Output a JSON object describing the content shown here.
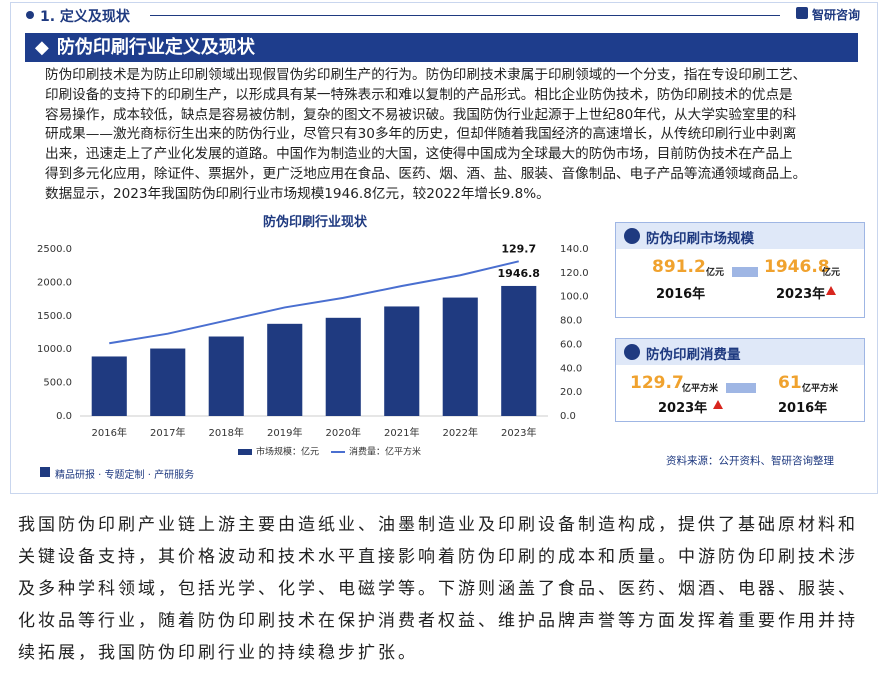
{
  "header": {
    "section": "1. 定义及现状",
    "logo": "智研咨询"
  },
  "banner": {
    "title": "防伪印刷行业定义及现状"
  },
  "intro": {
    "lines": [
      "防伪印刷技术是为防止印刷领域出现假冒伪劣印刷生产的行为。防伪印刷技术隶属于印刷领域的一个分支，指在专设印刷工艺、",
      "印刷设备的支持下的印刷生产，以形成具有某一特殊表示和难以复制的产品形式。相比企业防伪技术，防伪印刷技术的优点是",
      "容易操作，成本较低，缺点是容易被仿制，复杂的图文不易被识破。我国防伪行业起源于上世纪80年代，从大学实验室里的科",
      "研成果——激光商标衍生出来的防伪行业，尽管只有30多年的历史，但却伴随着我国经济的高速增长，从传统印刷行业中剥离",
      "出来，迅速走上了产业化发展的道路。中国作为制造业的大国，这使得中国成为全球最大的防伪市场，目前防伪技术在产品上",
      "得到多元化应用，除证件、票据外，更广泛地应用在食品、医药、烟、酒、盐、服装、音像制品、电子产品等流通领域商品上。",
      "数据显示，2023年我国防伪印刷行业市场规模1946.8亿元，较2022年增长9.8%。"
    ]
  },
  "chart_data": {
    "type": "bar_line",
    "title": "防伪印刷行业现状",
    "categories": [
      "2016年",
      "2017年",
      "2018年",
      "2019年",
      "2020年",
      "2021年",
      "2022年",
      "2023年"
    ],
    "series": [
      {
        "name": "市场规模：亿元",
        "type": "bar",
        "color": "#1f3a80",
        "values": [
          891.2,
          1010,
          1190,
          1380,
          1470,
          1640,
          1773,
          1946.8
        ]
      },
      {
        "name": "消费量：亿平方米",
        "type": "line",
        "axis": "y2",
        "color": "#4a6fd0",
        "values": [
          61,
          69,
          80,
          91,
          99,
          109,
          118,
          129.7
        ]
      }
    ],
    "data_labels": "last",
    "ylim": [
      0,
      2500
    ],
    "yticks": [
      {
        "value": 0,
        "label": "0.0"
      },
      {
        "value": 500,
        "label": "500.0"
      },
      {
        "value": 1000,
        "label": "1000.0"
      },
      {
        "value": 1500,
        "label": "1500.0"
      },
      {
        "value": 2000,
        "label": "2000.0"
      },
      {
        "value": 2500,
        "label": "2500.0"
      }
    ],
    "y2lim": [
      0,
      140
    ],
    "y2ticks": [
      {
        "value": 0,
        "label": "0.0"
      },
      {
        "value": 20,
        "label": "20.0"
      },
      {
        "value": 40,
        "label": "40.0"
      },
      {
        "value": 60,
        "label": "60.0"
      },
      {
        "value": 80,
        "label": "80.0"
      },
      {
        "value": 100,
        "label": "100.0"
      },
      {
        "value": 120,
        "label": "120.0"
      },
      {
        "value": 140,
        "label": "140.0"
      }
    ],
    "grid": false,
    "legend": "bottom"
  },
  "panels": [
    {
      "title": "防伪印刷市场规模",
      "left_value": "891.2",
      "left_unit": "亿元",
      "left_year": "2016年",
      "right_value": "1946.8",
      "right_unit": "亿元",
      "right_year": "2023年"
    },
    {
      "title": "防伪印刷消费量",
      "left_value": "129.7",
      "left_unit": "亿平方米",
      "left_year": "2023年",
      "right_value": "61",
      "right_unit": "亿平方米",
      "right_year": "2016年"
    }
  ],
  "footer": {
    "services": "精品研报 · 专题定制 · 产研服务",
    "source": "资料来源：公开资料、智研咨询整理"
  },
  "body": {
    "lines": [
      "我国防伪印刷产业链上游主要由造纸业、油墨制造业及印刷设备制造构成，提供了基础原材料和",
      "关键设备支持，其价格波动和技术水平直接影响着防伪印刷的成本和质量。中游防伪印刷技术涉",
      "及多种学科领域，包括光学、化学、电磁学等。下游则涵盖了食品、医药、烟酒、电器、服装、",
      "化妆品等行业，随着防伪印刷技术在保护消费者权益、维护品牌声誉等方面发挥着重要作用并持",
      "续拓展，我国防伪印刷行业的持续稳步扩张。"
    ]
  }
}
